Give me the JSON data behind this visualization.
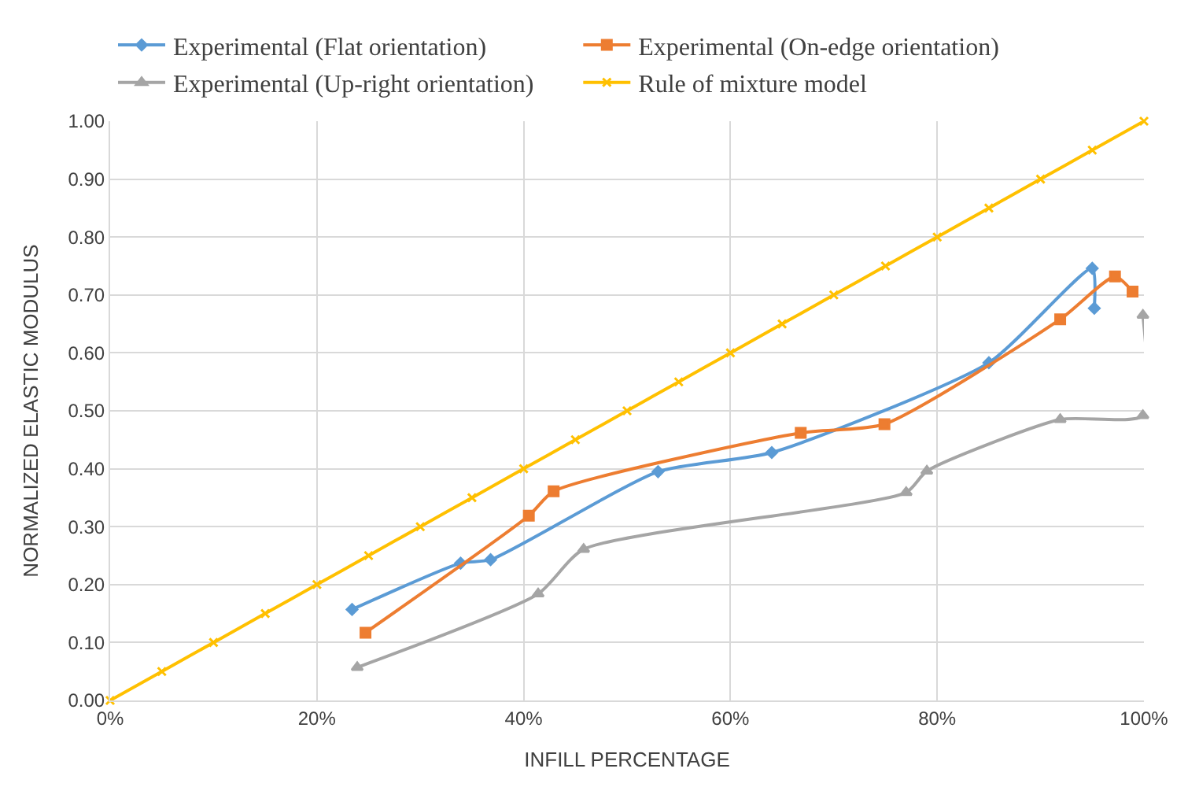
{
  "chart_data": {
    "type": "line",
    "xlabel": "INFILL PERCENTAGE",
    "ylabel": "NORMALIZED ELASTIC MODULUS",
    "xlim": [
      0,
      100
    ],
    "ylim": [
      0,
      1
    ],
    "xticks": [
      {
        "value": 0,
        "label": "0%"
      },
      {
        "value": 20,
        "label": "20%"
      },
      {
        "value": 40,
        "label": "40%"
      },
      {
        "value": 60,
        "label": "60%"
      },
      {
        "value": 80,
        "label": "80%"
      },
      {
        "value": 100,
        "label": "100%"
      }
    ],
    "yticks": [
      {
        "value": 0,
        "label": "0.00"
      },
      {
        "value": 0.1,
        "label": "0.10"
      },
      {
        "value": 0.2,
        "label": "0.20"
      },
      {
        "value": 0.3,
        "label": "0.30"
      },
      {
        "value": 0.4,
        "label": "0.40"
      },
      {
        "value": 0.5,
        "label": "0.50"
      },
      {
        "value": 0.6,
        "label": "0.60"
      },
      {
        "value": 0.7,
        "label": "0.70"
      },
      {
        "value": 0.8,
        "label": "0.80"
      },
      {
        "value": 0.9,
        "label": "0.90"
      },
      {
        "value": 1,
        "label": "1.00"
      }
    ],
    "grid": true,
    "legend": "top",
    "line_style": "solid",
    "series": [
      {
        "name": "Experimental (Flat orientation)",
        "color": "#5b9bd5",
        "marker": "diamond",
        "x": [
          23.4,
          33.9,
          36.8,
          53.0,
          64.0,
          85.0,
          95.0,
          95.2
        ],
        "values": [
          0.157,
          0.237,
          0.243,
          0.395,
          0.428,
          0.583,
          0.746,
          0.677
        ]
      },
      {
        "name": "Experimental (On-edge orientation)",
        "color": "#ed7d31",
        "marker": "square",
        "x": [
          24.7,
          40.5,
          42.9,
          66.8,
          74.9,
          91.9,
          97.2,
          98.9
        ],
        "values": [
          0.117,
          0.319,
          0.361,
          0.462,
          0.477,
          0.658,
          0.732,
          0.706
        ]
      },
      {
        "name": "Experimental (Up-right orientation)",
        "color": "#a5a5a5",
        "marker": "triangle",
        "x": [
          23.9,
          41.4,
          45.8,
          77.0,
          79.0,
          91.9,
          99.9,
          99.9
        ],
        "values": [
          0.057,
          0.184,
          0.261,
          0.359,
          0.396,
          0.485,
          0.492,
          0.665
        ]
      },
      {
        "name": "Rule of mixture model",
        "color": "#ffc000",
        "marker": "cross",
        "x": [
          0,
          5,
          10,
          15,
          20,
          25,
          30,
          35,
          40,
          45,
          50,
          55,
          60,
          65,
          70,
          75,
          80,
          85,
          90,
          95,
          100
        ],
        "values": [
          0,
          0.05,
          0.1,
          0.15,
          0.2,
          0.25,
          0.3,
          0.35,
          0.4,
          0.45,
          0.5,
          0.55,
          0.6,
          0.65,
          0.7,
          0.75,
          0.8,
          0.85,
          0.9,
          0.95,
          1.0
        ]
      }
    ]
  }
}
